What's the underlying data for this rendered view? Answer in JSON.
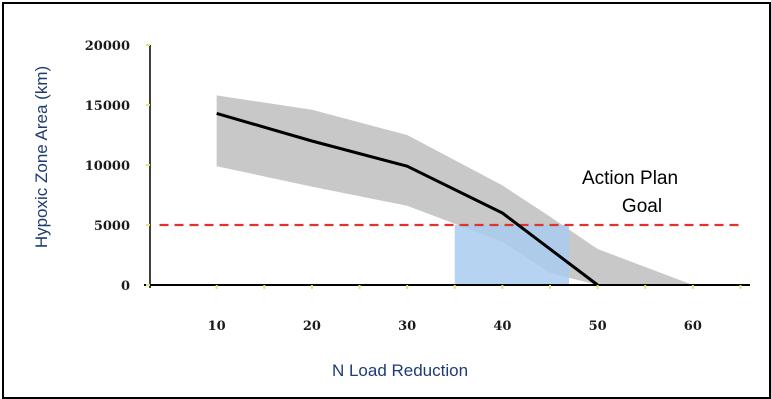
{
  "chart_data": {
    "type": "line",
    "xlabel": "N Load Reduction",
    "ylabel": "Hypoxic Zone Area (km)",
    "xlim": [
      3,
      66
    ],
    "ylim": [
      0,
      20000
    ],
    "xticks": [
      10,
      20,
      30,
      40,
      50,
      60
    ],
    "yticks": [
      0,
      5000,
      10000,
      15000,
      20000
    ],
    "grid": false,
    "series": [
      {
        "role": "central estimate",
        "color": "#000000",
        "x": [
          10,
          20,
          30,
          40,
          50
        ],
        "y": [
          14300,
          12000,
          9900,
          6000,
          0
        ]
      }
    ],
    "band": {
      "role": "uncertainty range",
      "color": "#c8c8c8",
      "x": [
        10,
        20,
        30,
        40,
        45,
        50,
        55,
        60
      ],
      "upper": [
        15800,
        14600,
        12500,
        8300,
        5700,
        3000,
        1500,
        0
      ],
      "lower": [
        9900,
        8200,
        6600,
        3600,
        1000,
        0,
        0,
        0
      ]
    },
    "goal_line": {
      "y": 5000,
      "color": "#e0342a",
      "x_range": [
        4,
        65
      ],
      "label_lines": [
        "Action Plan",
        "Goal"
      ]
    },
    "highlight_region": {
      "color": "#a9cdee",
      "x_range": [
        35,
        47
      ],
      "y_range": [
        0,
        5000
      ]
    }
  }
}
